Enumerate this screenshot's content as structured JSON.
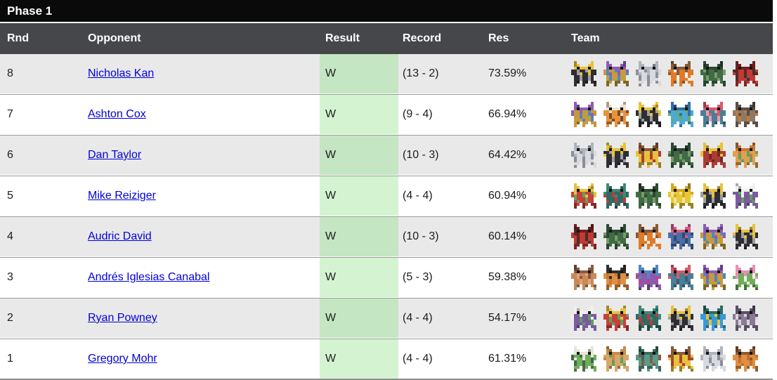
{
  "title": "Phase 1",
  "columns": [
    "Rnd",
    "Opponent",
    "Result",
    "Record",
    "Res",
    "Team"
  ],
  "colors": {
    "title_bg": "#0a0a0a",
    "header_bg": "#45474b",
    "row_alt_bg": "#e9e9e9",
    "green_light": "#d4f4d1",
    "green_dark": "#c4e6c2",
    "link": "#0000dd",
    "separator": "#9c9c9c"
  },
  "rows": [
    {
      "rnd": "8",
      "opponent": "Nicholas Kan",
      "result": "W",
      "record": "(13 - 2)",
      "res": "73.59%",
      "team": [
        [
          "#2f2f33",
          "#e8c23c",
          "#9aa0a6"
        ],
        [
          "#c79b3b",
          "#8e5bb5",
          "#4f86c6"
        ],
        [
          "#d8dadf",
          "#b0b4bc",
          "#8b8f99"
        ],
        [
          "#e07a28",
          "#8a5a35",
          "#f2f0ea"
        ],
        [
          "#3f6b45",
          "#2c4a33",
          "#7a9a6a"
        ],
        [
          "#c23a32",
          "#6e1f1e",
          "#3a3436"
        ]
      ]
    },
    {
      "rnd": "7",
      "opponent": "Ashton Cox",
      "result": "W",
      "record": "(9 - 4)",
      "res": "66.94%",
      "team": [
        [
          "#c79b3b",
          "#8e5bb5",
          "#4f86c6"
        ],
        [
          "#e8923a",
          "#f2e3c8",
          "#7a4a2a"
        ],
        [
          "#2f2f33",
          "#e8c23c",
          "#9aa0a6"
        ],
        [
          "#4fa8d8",
          "#2f6fa8",
          "#5fb06a"
        ],
        [
          "#4a7f96",
          "#d85a6a",
          "#e8a0b0"
        ],
        [
          "#8a7a66",
          "#5a5048",
          "#c87838"
        ]
      ]
    },
    {
      "rnd": "6",
      "opponent": "Dan Taylor",
      "result": "W",
      "record": "(10 - 3)",
      "res": "64.42%",
      "team": [
        [
          "#d8dadf",
          "#b0b4bc",
          "#8b8f99"
        ],
        [
          "#2f2f33",
          "#e8c23c",
          "#9aa0a6"
        ],
        [
          "#e8c23c",
          "#8a5a35",
          "#b03a30"
        ],
        [
          "#3f6b45",
          "#2c4a33",
          "#7a9a6a"
        ],
        [
          "#b03a34",
          "#e8c23c",
          "#6e2a26"
        ],
        [
          "#e0a050",
          "#c87838",
          "#5fa060"
        ]
      ]
    },
    {
      "rnd": "5",
      "opponent": "Mike Reiziger",
      "result": "W",
      "record": "(4 - 4)",
      "res": "60.94%",
      "team": [
        [
          "#c8403a",
          "#e8c23c",
          "#5fa060"
        ],
        [
          "#2e6b62",
          "#3a8a7a",
          "#c03a40"
        ],
        [
          "#3f6b45",
          "#2c4a33",
          "#7a9a6a"
        ],
        [
          "#e8c832",
          "#d4a820",
          "#f2e0a0"
        ],
        [
          "#2f2f33",
          "#e8c23c",
          "#9aa0a6"
        ],
        [
          "#7a5b9e",
          "#f0f0ec",
          "#5fa060"
        ]
      ]
    },
    {
      "rnd": "4",
      "opponent": "Audric David",
      "result": "W",
      "record": "(10 - 3)",
      "res": "60.14%",
      "team": [
        [
          "#c23a32",
          "#6e1f1e",
          "#3a3436"
        ],
        [
          "#3f6b45",
          "#2c4a33",
          "#7a9a6a"
        ],
        [
          "#e07a28",
          "#8a5a35",
          "#f2f0ea"
        ],
        [
          "#4a6fa8",
          "#d85a88",
          "#2f4a70"
        ],
        [
          "#c79b3b",
          "#8e5bb5",
          "#4f86c6"
        ],
        [
          "#2f2f33",
          "#e8c23c",
          "#9aa0a6"
        ]
      ]
    },
    {
      "rnd": "3",
      "opponent": "Andrés Iglesias Canabal",
      "result": "W",
      "record": "(5 - 3)",
      "res": "59.38%",
      "team": [
        [
          "#c88a5a",
          "#8a5a40",
          "#e8a070"
        ],
        [
          "#e09040",
          "#2f2f33",
          "#c87838"
        ],
        [
          "#8a5bb0",
          "#4f86c6",
          "#b04a8a"
        ],
        [
          "#4a7f96",
          "#d85a6a",
          "#3a5f75"
        ],
        [
          "#c79b3b",
          "#8e5bb5",
          "#4f86c6"
        ],
        [
          "#6fae5a",
          "#e890b8",
          "#f2f0ea"
        ]
      ]
    },
    {
      "rnd": "2",
      "opponent": "Ryan Powney",
      "result": "W",
      "record": "(4 - 4)",
      "res": "54.17%",
      "team": [
        [
          "#7a5b9e",
          "#f0f0ec",
          "#5fa060"
        ],
        [
          "#c8403a",
          "#e8c23c",
          "#5fa060"
        ],
        [
          "#2e6b62",
          "#3a8a7a",
          "#c03a40"
        ],
        [
          "#2f2f33",
          "#e8c23c",
          "#9aa0a6"
        ],
        [
          "#3a9ad8",
          "#2e6b62",
          "#e8c23c"
        ],
        [
          "#8a7a96",
          "#5a5066",
          "#d8d4dc"
        ]
      ]
    },
    {
      "rnd": "1",
      "opponent": "Gregory Mohr",
      "result": "W",
      "record": "(4 - 4)",
      "res": "61.31%",
      "team": [
        [
          "#6fae5a",
          "#e8e4d8",
          "#3f6b45"
        ],
        [
          "#d8a868",
          "#c88a4a",
          "#5fa060"
        ],
        [
          "#5a9a8a",
          "#3a6b5e",
          "#8a5a40"
        ],
        [
          "#e8c23c",
          "#8a5a35",
          "#b03a30"
        ],
        [
          "#d8dadf",
          "#b0b4bc",
          "#8b8f99"
        ],
        [
          "#e09040",
          "#8a5a35",
          "#c87030"
        ]
      ]
    }
  ]
}
